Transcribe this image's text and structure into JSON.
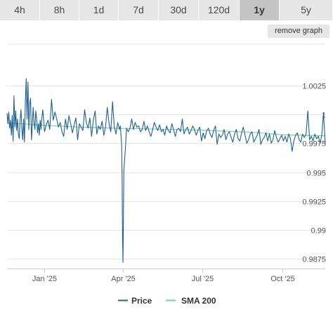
{
  "tabs": [
    {
      "label": "4h",
      "active": false
    },
    {
      "label": "8h",
      "active": false
    },
    {
      "label": "1d",
      "active": false
    },
    {
      "label": "7d",
      "active": false
    },
    {
      "label": "30d",
      "active": false
    },
    {
      "label": "120d",
      "active": false
    },
    {
      "label": "1y",
      "active": true
    },
    {
      "label": "5y",
      "active": false
    }
  ],
  "remove_graph_label": "remove graph",
  "chart_data": {
    "type": "line",
    "ylim": [
      0.98667,
      1.00607
    ],
    "yticks": [
      {
        "value": 1.0025,
        "label": "1.0025"
      },
      {
        "value": 1.0,
        "label": "1"
      },
      {
        "value": 0.9975,
        "label": "0.9975"
      },
      {
        "value": 0.995,
        "label": "0.995"
      },
      {
        "value": 0.9925,
        "label": "0.9925"
      },
      {
        "value": 0.99,
        "label": "0.99"
      },
      {
        "value": 0.9875,
        "label": "0.9875"
      }
    ],
    "x_range_days": [
      -43,
      322
    ],
    "xticks": [
      {
        "day": 0,
        "label": "Jan '25"
      },
      {
        "day": 90,
        "label": "Apr '25"
      },
      {
        "day": 181,
        "label": "Jul '25"
      },
      {
        "day": 273,
        "label": "Oct '25"
      }
    ],
    "grid": true,
    "legend_placement": "bottom",
    "series": [
      {
        "name": "Price",
        "color": "#1f5f95",
        "x": [
          -43,
          -42,
          -41,
          -40,
          -39,
          -38,
          -37,
          -36,
          -35,
          -34,
          -33,
          -32,
          -31,
          -30,
          -29,
          -28,
          -27,
          -26,
          -25,
          -24,
          -23,
          -22,
          -21,
          -20,
          -19,
          -18,
          -17,
          -16,
          -15,
          -14,
          -13,
          -12,
          -11,
          -10,
          -9,
          -8,
          -7,
          -6,
          -5,
          -4,
          -3,
          -2,
          -1,
          0,
          2,
          4,
          6,
          8,
          10,
          12,
          14,
          16,
          18,
          20,
          22,
          24,
          26,
          28,
          30,
          32,
          34,
          36,
          38,
          40,
          42,
          44,
          46,
          48,
          50,
          52,
          54,
          56,
          58,
          60,
          62,
          64,
          66,
          68,
          70,
          72,
          74,
          76,
          78,
          80,
          82,
          84,
          86,
          87,
          88,
          88.5,
          89,
          89.5,
          90,
          91,
          92,
          93,
          94,
          96,
          98,
          100,
          102,
          104,
          106,
          108,
          110,
          112,
          114,
          116,
          118,
          120,
          122,
          124,
          126,
          128,
          130,
          132,
          134,
          136,
          138,
          140,
          142,
          144,
          146,
          148,
          150,
          152,
          154,
          156,
          158,
          160,
          162,
          164,
          166,
          168,
          170,
          172,
          174,
          176,
          178,
          180,
          182,
          184,
          186,
          188,
          190,
          192,
          194,
          196,
          198,
          200,
          202,
          204,
          206,
          208,
          210,
          212,
          214,
          216,
          218,
          220,
          222,
          224,
          226,
          228,
          230,
          232,
          234,
          236,
          238,
          240,
          242,
          244,
          246,
          248,
          250,
          252,
          254,
          256,
          258,
          260,
          262,
          264,
          266,
          268,
          270,
          272,
          274,
          276,
          278,
          280,
          282,
          284,
          286,
          288,
          290,
          292,
          294,
          296,
          298,
          300,
          302,
          304,
          306,
          308,
          310,
          312,
          314,
          316,
          318,
          320,
          322
        ],
        "values": [
          1.0001,
          0.9992,
          1.0002,
          0.9988,
          0.9995,
          0.9982,
          0.9999,
          0.9977,
          1.0016,
          0.9989,
          1.0003,
          0.9986,
          0.9996,
          0.9983,
          0.9979,
          0.9995,
          1.0004,
          0.9988,
          0.9978,
          0.9996,
          0.9976,
          1.0011,
          1.0031,
          0.9996,
          1.0028,
          0.9987,
          1.0009,
          1.0014,
          0.9978,
          0.9991,
          1.0006,
          0.9993,
          0.9987,
          1.0003,
          0.9996,
          0.9984,
          0.9992,
          0.9982,
          0.9995,
          0.9987,
          0.9997,
          1.0004,
          0.9996,
          0.9985,
          0.9991,
          0.9995,
          0.9987,
          1.0013,
          0.9995,
          1.0002,
          0.9996,
          0.9989,
          0.9993,
          0.9985,
          0.9981,
          0.9996,
          0.9987,
          0.9999,
          0.9992,
          0.9984,
          0.9991,
          0.9997,
          0.9978,
          0.9992,
          0.9989,
          0.9986,
          1.0004,
          0.9993,
          0.9988,
          0.9997,
          0.9981,
          0.9995,
          1.0003,
          0.9983,
          0.999,
          0.9987,
          0.9994,
          0.9982,
          0.9989,
          1.0006,
          0.9992,
          0.9985,
          1.0011,
          0.9989,
          0.9983,
          0.9993,
          0.9987,
          0.999,
          0.9979,
          0.9973,
          0.9945,
          0.9895,
          0.9872,
          0.9952,
          0.9962,
          0.9973,
          0.9988,
          0.9985,
          0.9988,
          0.9996,
          0.9987,
          0.9993,
          0.9989,
          0.999,
          0.9985,
          0.9987,
          0.9994,
          0.9986,
          0.999,
          0.9985,
          0.9981,
          0.9987,
          0.9993,
          0.9989,
          0.9986,
          0.9991,
          0.9985,
          0.9987,
          0.9982,
          0.999,
          0.9986,
          0.9984,
          0.9992,
          0.9987,
          0.9981,
          0.9987,
          0.9988,
          0.9985,
          0.9996,
          0.9983,
          0.9987,
          0.9989,
          0.9983,
          0.9986,
          0.999,
          0.9987,
          0.9982,
          0.9986,
          0.9989,
          0.9977,
          0.9984,
          0.9979,
          0.9986,
          0.9988,
          0.9983,
          0.998,
          0.9986,
          0.999,
          0.9974,
          0.9983,
          0.998,
          0.9982,
          0.9987,
          0.9978,
          0.9983,
          0.9985,
          0.998,
          0.9976,
          0.9983,
          0.9987,
          0.9979,
          0.9977,
          0.9984,
          0.9989,
          0.9982,
          0.9975,
          0.9978,
          0.9983,
          0.9985,
          0.9976,
          0.9979,
          0.9982,
          0.9987,
          0.9974,
          0.9978,
          0.998,
          0.9984,
          0.9977,
          0.9983,
          0.9975,
          0.9978,
          0.9986,
          0.998,
          0.9976,
          0.9979,
          0.9982,
          0.9977,
          0.9981,
          0.9976,
          0.9983,
          0.9979,
          0.9968,
          0.9977,
          0.9982,
          0.9984,
          0.9978,
          0.9976,
          0.9983,
          0.998,
          0.9983,
          1.0003,
          0.9978,
          0.9981,
          0.9977,
          0.9983,
          0.9979,
          0.9981,
          0.9975,
          0.9982,
          1.0001,
          0.9974
        ]
      },
      {
        "name": "SMA 200",
        "color": "#6fd49a",
        "x": [
          -43,
          -30,
          0,
          40,
          90,
          130,
          180,
          230,
          250,
          270,
          300,
          322
        ],
        "values": [
          0.99925,
          0.9992,
          0.99905,
          0.9989,
          0.99878,
          0.99872,
          0.99863,
          0.99848,
          0.99838,
          0.99825,
          0.99818,
          0.99815
        ]
      }
    ]
  }
}
